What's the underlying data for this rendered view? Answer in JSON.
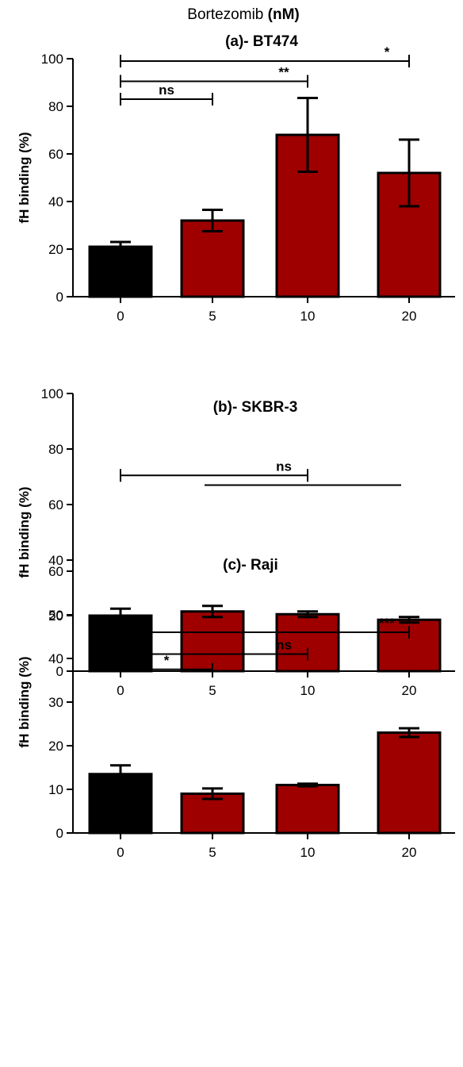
{
  "header": {
    "prefix": "Bortezomib ",
    "unit": "(nM)"
  },
  "chart_data": [
    {
      "type": "bar",
      "title": "(a)- BT474",
      "ylabel": "fH binding (%)",
      "xlabel": "",
      "categories": [
        "0",
        "5",
        "10",
        "20"
      ],
      "values": [
        21,
        32,
        68,
        52
      ],
      "errors": [
        2,
        4.5,
        15.5,
        14
      ],
      "ylim": [
        0,
        100
      ],
      "yticks": [
        "0",
        "20",
        "40",
        "60",
        "80",
        "100"
      ],
      "colors": [
        "#000000",
        "#9e0000",
        "#9e0000",
        "#9e0000"
      ],
      "significance": [
        {
          "from": 0,
          "to": 1,
          "y": 83,
          "label": "ns"
        },
        {
          "from": 0,
          "to": 2,
          "y": 90.5,
          "label": "**"
        },
        {
          "from": 0,
          "to": 3,
          "y": 99,
          "label": "*"
        }
      ]
    },
    {
      "type": "bar",
      "title": "(b)- SKBR-3",
      "ylabel": "fH binding (%)",
      "xlabel": "",
      "categories": [
        "0",
        "5",
        "10",
        "20"
      ],
      "values": [
        20,
        21.5,
        20.5,
        18.5
      ],
      "errors": [
        2.5,
        2,
        1,
        1
      ],
      "ylim": [
        0,
        100
      ],
      "yticks": [
        "0",
        "20",
        "40",
        "60",
        "80",
        "100"
      ],
      "colors": [
        "#000000",
        "#9e0000",
        "#9e0000",
        "#9e0000"
      ],
      "significance": [
        {
          "from": 0,
          "to": 2,
          "y": 70.5,
          "label": "ns",
          "lower_from": 1,
          "lower_to": 3,
          "lower_y": 67
        }
      ]
    },
    {
      "type": "bar",
      "title": "(c)- Raji",
      "ylabel": "fH binding (%)",
      "xlabel": "",
      "categories": [
        "0",
        "5",
        "10",
        "20"
      ],
      "values": [
        13.5,
        9,
        11,
        23
      ],
      "errors": [
        2,
        1.2,
        0.3,
        1
      ],
      "ylim": [
        0,
        60
      ],
      "yticks": [
        "0",
        "10",
        "20",
        "30",
        "40",
        "50",
        "60"
      ],
      "colors": [
        "#000000",
        "#9e0000",
        "#9e0000",
        "#9e0000"
      ],
      "significance": [
        {
          "from": 0,
          "to": 1,
          "y": 37.5,
          "label": "*"
        },
        {
          "from": 0,
          "to": 2,
          "y": 41,
          "label": "ns"
        },
        {
          "from": 0,
          "to": 3,
          "y": 46,
          "label": "***"
        }
      ]
    }
  ]
}
